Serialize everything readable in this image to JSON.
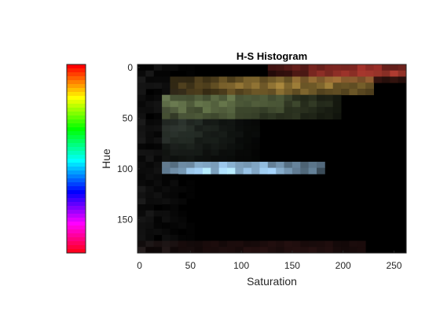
{
  "chart_data": [
    {
      "type": "heatmap",
      "title": "H-S Histogram",
      "xlabel": "Saturation",
      "ylabel": "Hue",
      "xlim": [
        -2,
        262
      ],
      "ylim": [
        183,
        -3
      ],
      "y_reversed": true,
      "xticks": [
        0,
        50,
        100,
        150,
        200,
        250
      ],
      "yticks": [
        0,
        50,
        100,
        150
      ],
      "grid": false,
      "cell_size": [
        8,
        6
      ],
      "background": "#000000",
      "regions": [
        {
          "hue": [
            0,
            6
          ],
          "saturation": [
            130,
            262
          ],
          "color": "#c83c34",
          "peak": [
            210,
            2
          ],
          "intensity": 0.75
        },
        {
          "hue": [
            6,
            12
          ],
          "saturation": [
            150,
            262
          ],
          "color": "#a84030",
          "peak": [
            235,
            8
          ],
          "intensity": 0.45
        },
        {
          "hue": [
            12,
            26
          ],
          "saturation": [
            30,
            230
          ],
          "color": "#c8a048",
          "peak": [
            150,
            18
          ],
          "intensity": 0.7
        },
        {
          "hue": [
            26,
            52
          ],
          "saturation": [
            20,
            200
          ],
          "color": "#98b070",
          "peak": [
            70,
            35
          ],
          "intensity": 0.6
        },
        {
          "hue": [
            52,
            90
          ],
          "saturation": [
            20,
            120
          ],
          "color": "#5c7060",
          "peak": [
            40,
            60
          ],
          "intensity": 0.35
        },
        {
          "hue": [
            94,
            104
          ],
          "saturation": [
            25,
            180
          ],
          "color": "#a8d8ff",
          "peak": [
            95,
            100
          ],
          "intensity": 1.0
        },
        {
          "hue": [
            172,
            183
          ],
          "saturation": [
            0,
            220
          ],
          "color": "#602a2a",
          "peak": [
            140,
            178
          ],
          "intensity": 0.35
        }
      ]
    },
    {
      "type": "colorbar",
      "colormap": "hsv",
      "orientation": "vertical",
      "levels": 48
    }
  ]
}
